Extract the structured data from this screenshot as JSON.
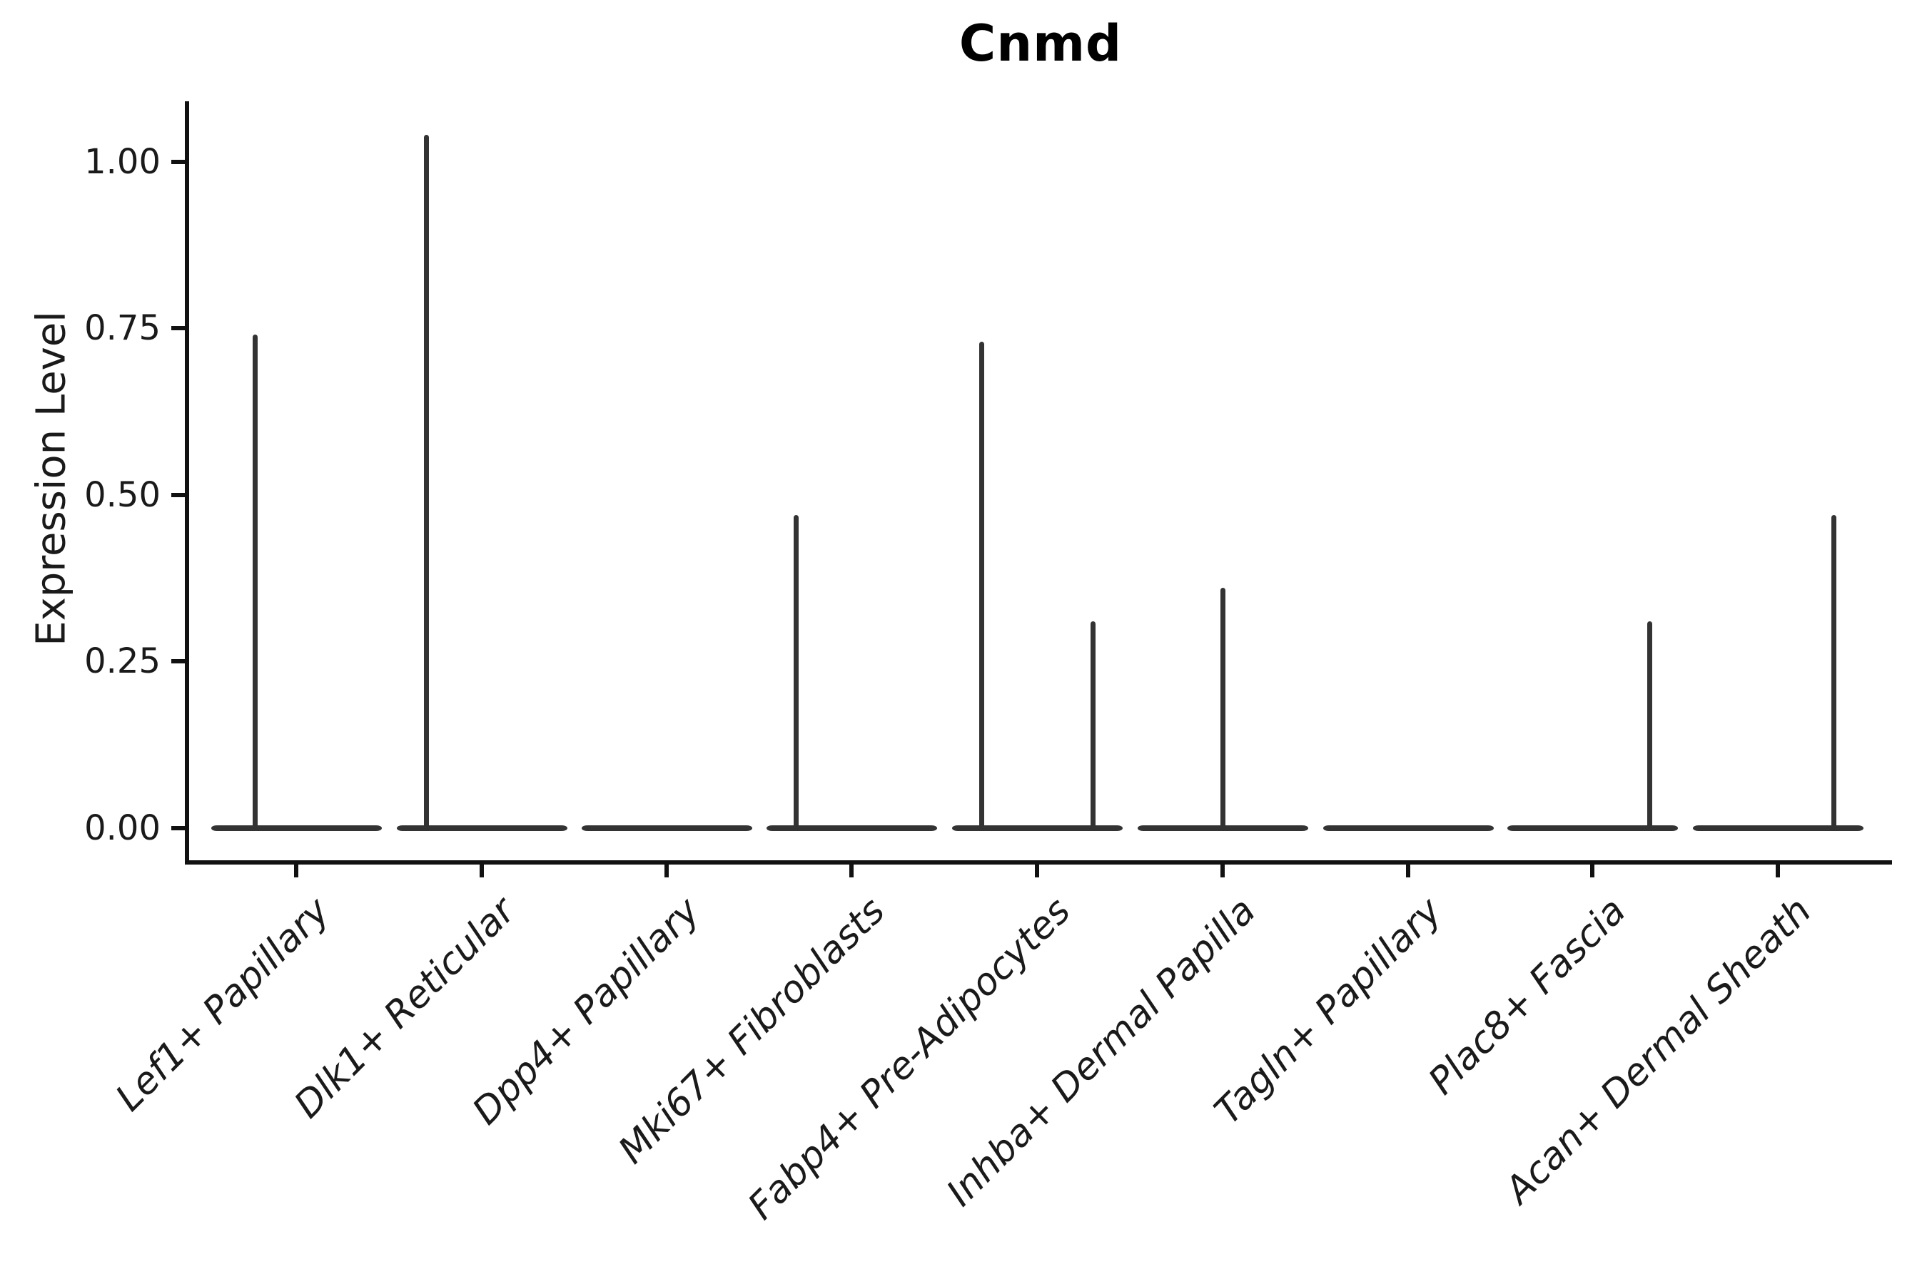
{
  "title": "Cnmd",
  "y_axis": {
    "label": "Expression Level",
    "ticks": [
      "1.00",
      "0.75",
      "0.50",
      "0.25",
      "0.00"
    ],
    "tick_values": [
      1.0,
      0.75,
      0.5,
      0.25,
      0.0
    ]
  },
  "x_axis": {
    "categories": [
      "Lef1+ Papillary",
      "Dlk1+ Reticular",
      "Dpp4+ Papillary",
      "Mki67+ Fibroblasts",
      "Fabp4+ Pre-Adipocytes",
      "Inhba+ Dermal Papilla",
      "Tagln+ Papillary",
      "Plac8+ Fascia",
      "Acan+ Dermal Sheath"
    ]
  },
  "chart_data": {
    "type": "violin",
    "title": "Cnmd",
    "xlabel": "",
    "ylabel": "Expression Level",
    "ylim": [
      0,
      1.09
    ],
    "grid": false,
    "legend": false,
    "description": "Collapsed violin plot of gene expression: each cluster shows a flat density bar at 0 with thin vertical spikes reaching the maximum expression of sparse positive cells.",
    "categories": [
      "Lef1+ Papillary",
      "Dlk1+ Reticular",
      "Dpp4+ Papillary",
      "Mki67+ Fibroblasts",
      "Fabp4+ Pre-Adipocytes",
      "Inhba+ Dermal Papilla",
      "Tagln+ Papillary",
      "Plac8+ Fascia",
      "Acan+ Dermal Sheath"
    ],
    "violins": [
      {
        "category": "Lef1+ Papillary",
        "baseline_value": 0.0,
        "spikes": [
          {
            "value": 0.74,
            "offset_frac": -0.22
          }
        ]
      },
      {
        "category": "Dlk1+ Reticular",
        "baseline_value": 0.0,
        "spikes": [
          {
            "value": 1.04,
            "offset_frac": -0.3
          }
        ]
      },
      {
        "category": "Dpp4+ Papillary",
        "baseline_value": 0.0,
        "spikes": []
      },
      {
        "category": "Mki67+ Fibroblasts",
        "baseline_value": 0.0,
        "spikes": [
          {
            "value": 0.47,
            "offset_frac": -0.3
          }
        ]
      },
      {
        "category": "Fabp4+ Pre-Adipocytes",
        "baseline_value": 0.0,
        "spikes": [
          {
            "value": 0.73,
            "offset_frac": -0.3
          },
          {
            "value": 0.31,
            "offset_frac": 0.3
          }
        ]
      },
      {
        "category": "Inhba+ Dermal Papilla",
        "baseline_value": 0.0,
        "spikes": [
          {
            "value": 0.36,
            "offset_frac": 0.0
          }
        ]
      },
      {
        "category": "Tagln+ Papillary",
        "baseline_value": 0.0,
        "spikes": []
      },
      {
        "category": "Plac8+ Fascia",
        "baseline_value": 0.0,
        "spikes": [
          {
            "value": 0.31,
            "offset_frac": 0.31
          }
        ]
      },
      {
        "category": "Acan+ Dermal Sheath",
        "baseline_value": 0.0,
        "spikes": [
          {
            "value": 0.47,
            "offset_frac": 0.3
          }
        ]
      }
    ]
  },
  "colors": {
    "background": "#ffffff",
    "axis": "#111111",
    "text": "#1a1a1a",
    "violin": "#333333"
  }
}
